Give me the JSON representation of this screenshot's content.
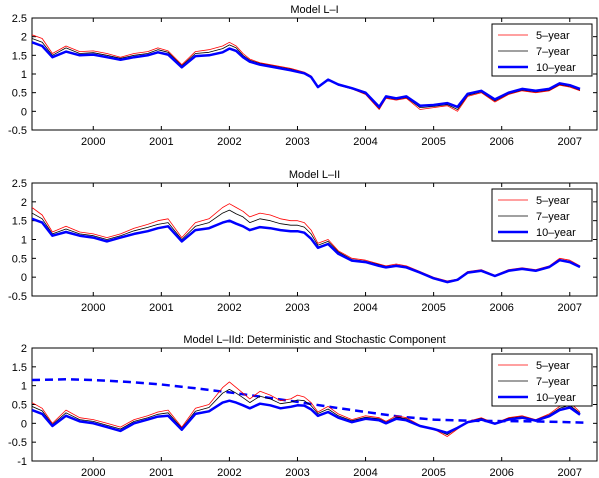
{
  "figure": {
    "x_ticks": [
      2000,
      2001,
      2002,
      2003,
      2004,
      2005,
      2006,
      2007
    ],
    "x_range": [
      1999.1,
      2007.4
    ]
  },
  "colors": {
    "five_year": "#ff0000",
    "seven_year": "#000000",
    "ten_year": "#0000ff",
    "deterministic": "#0000ff"
  },
  "chart_data": [
    {
      "type": "line",
      "title": "Model L–I",
      "xlabel": "",
      "ylabel": "",
      "xlim": [
        1999.1,
        2007.4
      ],
      "ylim": [
        -0.5,
        2.5
      ],
      "y_ticks": [
        -0.5,
        0,
        0.5,
        1,
        1.5,
        2,
        2.5
      ],
      "y_tick_labels": [
        "-0.5",
        "0",
        "0.5",
        "1",
        "1.5",
        "2",
        "2.5"
      ],
      "legend_position": "top-right",
      "x": [
        1999.1,
        1999.25,
        1999.4,
        1999.6,
        1999.8,
        2000.0,
        2000.2,
        2000.4,
        2000.6,
        2000.8,
        2000.95,
        2001.1,
        2001.3,
        2001.5,
        2001.7,
        2001.9,
        2002.0,
        2002.1,
        2002.2,
        2002.3,
        2002.45,
        2002.6,
        2002.75,
        2002.9,
        2003.0,
        2003.1,
        2003.2,
        2003.3,
        2003.45,
        2003.6,
        2003.8,
        2004.0,
        2004.2,
        2004.3,
        2004.45,
        2004.6,
        2004.8,
        2005.0,
        2005.2,
        2005.35,
        2005.5,
        2005.7,
        2005.9,
        2006.1,
        2006.3,
        2006.5,
        2006.7,
        2006.85,
        2007.0,
        2007.15
      ],
      "series": [
        {
          "name": "5–year",
          "values": [
            2.05,
            1.95,
            1.55,
            1.75,
            1.6,
            1.62,
            1.55,
            1.45,
            1.55,
            1.6,
            1.7,
            1.62,
            1.25,
            1.6,
            1.65,
            1.75,
            1.85,
            1.75,
            1.55,
            1.4,
            1.3,
            1.25,
            1.2,
            1.15,
            1.1,
            1.05,
            0.95,
            0.65,
            0.85,
            0.7,
            0.6,
            0.45,
            0.05,
            0.35,
            0.3,
            0.35,
            0.05,
            0.1,
            0.15,
            0.0,
            0.4,
            0.5,
            0.25,
            0.45,
            0.55,
            0.5,
            0.55,
            0.7,
            0.65,
            0.55
          ]
        },
        {
          "name": "7–year",
          "values": [
            1.95,
            1.85,
            1.5,
            1.7,
            1.55,
            1.57,
            1.5,
            1.42,
            1.5,
            1.55,
            1.65,
            1.58,
            1.22,
            1.55,
            1.58,
            1.68,
            1.78,
            1.7,
            1.5,
            1.37,
            1.28,
            1.23,
            1.18,
            1.13,
            1.08,
            1.03,
            0.93,
            0.65,
            0.85,
            0.7,
            0.6,
            0.47,
            0.08,
            0.37,
            0.32,
            0.37,
            0.1,
            0.13,
            0.18,
            0.05,
            0.43,
            0.52,
            0.28,
            0.47,
            0.57,
            0.52,
            0.57,
            0.72,
            0.67,
            0.57
          ]
        },
        {
          "name": "10–year",
          "values": [
            1.85,
            1.75,
            1.45,
            1.6,
            1.5,
            1.52,
            1.45,
            1.38,
            1.45,
            1.5,
            1.58,
            1.52,
            1.18,
            1.48,
            1.5,
            1.58,
            1.68,
            1.62,
            1.45,
            1.33,
            1.25,
            1.2,
            1.15,
            1.1,
            1.06,
            1.02,
            0.92,
            0.65,
            0.85,
            0.72,
            0.62,
            0.5,
            0.12,
            0.4,
            0.35,
            0.4,
            0.15,
            0.17,
            0.22,
            0.12,
            0.47,
            0.55,
            0.32,
            0.5,
            0.6,
            0.55,
            0.6,
            0.75,
            0.7,
            0.6
          ]
        }
      ]
    },
    {
      "type": "line",
      "title": "Model L–II",
      "xlabel": "",
      "ylabel": "",
      "xlim": [
        1999.1,
        2007.4
      ],
      "ylim": [
        -0.5,
        2.5
      ],
      "y_ticks": [
        -0.5,
        0,
        0.5,
        1,
        1.5,
        2,
        2.5
      ],
      "y_tick_labels": [
        "-0.5",
        "0",
        "0.5",
        "1",
        "1.5",
        "2",
        "2.5"
      ],
      "legend_position": "top-right",
      "x": [
        1999.1,
        1999.25,
        1999.4,
        1999.6,
        1999.8,
        2000.0,
        2000.2,
        2000.4,
        2000.6,
        2000.8,
        2000.95,
        2001.1,
        2001.3,
        2001.5,
        2001.7,
        2001.9,
        2002.0,
        2002.1,
        2002.2,
        2002.3,
        2002.45,
        2002.6,
        2002.75,
        2002.9,
        2003.0,
        2003.1,
        2003.2,
        2003.3,
        2003.45,
        2003.6,
        2003.8,
        2004.0,
        2004.2,
        2004.3,
        2004.45,
        2004.6,
        2004.8,
        2005.0,
        2005.2,
        2005.35,
        2005.5,
        2005.7,
        2005.9,
        2006.1,
        2006.3,
        2006.5,
        2006.7,
        2006.85,
        2007.0,
        2007.15
      ],
      "series": [
        {
          "name": "5–year",
          "values": [
            1.85,
            1.65,
            1.2,
            1.35,
            1.2,
            1.15,
            1.05,
            1.15,
            1.3,
            1.4,
            1.5,
            1.55,
            1.05,
            1.45,
            1.55,
            1.85,
            1.95,
            1.85,
            1.75,
            1.6,
            1.7,
            1.65,
            1.55,
            1.5,
            1.5,
            1.45,
            1.25,
            0.9,
            1.0,
            0.7,
            0.5,
            0.45,
            0.35,
            0.3,
            0.35,
            0.3,
            0.15,
            0.0,
            -0.1,
            -0.05,
            0.15,
            0.2,
            0.05,
            0.2,
            0.25,
            0.2,
            0.3,
            0.5,
            0.45,
            0.3
          ]
        },
        {
          "name": "7–year",
          "values": [
            1.7,
            1.55,
            1.15,
            1.28,
            1.15,
            1.1,
            1.0,
            1.1,
            1.23,
            1.32,
            1.4,
            1.45,
            1.0,
            1.35,
            1.45,
            1.7,
            1.78,
            1.68,
            1.6,
            1.45,
            1.55,
            1.5,
            1.42,
            1.38,
            1.38,
            1.33,
            1.15,
            0.85,
            0.95,
            0.67,
            0.47,
            0.42,
            0.33,
            0.28,
            0.32,
            0.28,
            0.13,
            -0.02,
            -0.12,
            -0.06,
            0.13,
            0.18,
            0.04,
            0.18,
            0.23,
            0.18,
            0.28,
            0.47,
            0.42,
            0.28
          ]
        },
        {
          "name": "10–year",
          "values": [
            1.55,
            1.45,
            1.1,
            1.2,
            1.1,
            1.05,
            0.95,
            1.05,
            1.15,
            1.22,
            1.3,
            1.35,
            0.95,
            1.25,
            1.3,
            1.45,
            1.5,
            1.42,
            1.35,
            1.25,
            1.33,
            1.3,
            1.25,
            1.22,
            1.22,
            1.18,
            1.02,
            0.78,
            0.88,
            0.62,
            0.44,
            0.4,
            0.3,
            0.26,
            0.3,
            0.26,
            0.12,
            -0.03,
            -0.13,
            -0.07,
            0.12,
            0.17,
            0.03,
            0.17,
            0.22,
            0.17,
            0.27,
            0.45,
            0.4,
            0.27
          ]
        }
      ]
    },
    {
      "type": "line",
      "title": "Model L–IId: Deterministic and Stochastic Component",
      "xlabel": "",
      "ylabel": "",
      "xlim": [
        1999.1,
        2007.4
      ],
      "ylim": [
        -1,
        2
      ],
      "y_ticks": [
        -1,
        -0.5,
        0,
        0.5,
        1,
        1.5,
        2
      ],
      "y_tick_labels": [
        "-1",
        "-0.5",
        "0",
        "0.5",
        "1",
        "1.5",
        "2"
      ],
      "legend_position": "top-right",
      "x": [
        1999.1,
        1999.25,
        1999.4,
        1999.6,
        1999.8,
        2000.0,
        2000.2,
        2000.4,
        2000.6,
        2000.8,
        2000.95,
        2001.1,
        2001.3,
        2001.5,
        2001.7,
        2001.9,
        2002.0,
        2002.1,
        2002.2,
        2002.3,
        2002.45,
        2002.6,
        2002.75,
        2002.9,
        2003.0,
        2003.1,
        2003.2,
        2003.3,
        2003.45,
        2003.6,
        2003.8,
        2004.0,
        2004.2,
        2004.3,
        2004.45,
        2004.6,
        2004.8,
        2005.0,
        2005.2,
        2005.35,
        2005.5,
        2005.7,
        2005.9,
        2006.1,
        2006.3,
        2006.5,
        2006.7,
        2006.85,
        2007.0,
        2007.15
      ],
      "series": [
        {
          "name": "5–year",
          "values": [
            0.55,
            0.4,
            0.0,
            0.35,
            0.15,
            0.1,
            0.0,
            -0.1,
            0.1,
            0.2,
            0.3,
            0.35,
            -0.1,
            0.4,
            0.5,
            0.95,
            1.1,
            0.95,
            0.8,
            0.65,
            0.85,
            0.75,
            0.6,
            0.65,
            0.75,
            0.7,
            0.55,
            0.3,
            0.45,
            0.25,
            0.1,
            0.2,
            0.15,
            0.05,
            0.2,
            0.15,
            -0.05,
            -0.15,
            -0.35,
            -0.15,
            0.05,
            0.15,
            0.0,
            0.15,
            0.2,
            0.1,
            0.25,
            0.45,
            0.55,
            0.3
          ]
        },
        {
          "name": "7–year",
          "values": [
            0.45,
            0.33,
            -0.03,
            0.28,
            0.1,
            0.05,
            -0.05,
            -0.15,
            0.05,
            0.15,
            0.24,
            0.28,
            -0.13,
            0.32,
            0.42,
            0.8,
            0.9,
            0.8,
            0.68,
            0.55,
            0.72,
            0.65,
            0.52,
            0.56,
            0.62,
            0.6,
            0.47,
            0.26,
            0.38,
            0.2,
            0.07,
            0.16,
            0.12,
            0.03,
            0.16,
            0.12,
            -0.06,
            -0.15,
            -0.3,
            -0.13,
            0.04,
            0.13,
            0.0,
            0.13,
            0.18,
            0.09,
            0.22,
            0.4,
            0.48,
            0.27
          ]
        },
        {
          "name": "10–year",
          "values": [
            0.35,
            0.25,
            -0.07,
            0.2,
            0.05,
            0.0,
            -0.1,
            -0.2,
            0.0,
            0.1,
            0.18,
            0.2,
            -0.17,
            0.25,
            0.32,
            0.55,
            0.6,
            0.55,
            0.48,
            0.4,
            0.52,
            0.48,
            0.4,
            0.44,
            0.48,
            0.47,
            0.37,
            0.2,
            0.3,
            0.15,
            0.03,
            0.12,
            0.08,
            0.0,
            0.12,
            0.08,
            -0.07,
            -0.15,
            -0.25,
            -0.12,
            0.03,
            0.1,
            -0.01,
            0.1,
            0.15,
            0.07,
            0.19,
            0.35,
            0.42,
            0.23
          ]
        }
      ],
      "dashed_series": {
        "x": [
          1999.1,
          1999.6,
          2000.0,
          2000.5,
          2001.0,
          2001.5,
          2002.0,
          2002.5,
          2003.0,
          2003.5,
          2004.0,
          2004.5,
          2005.0,
          2005.5,
          2006.0,
          2006.5,
          2007.0,
          2007.2
        ],
        "values": [
          1.15,
          1.17,
          1.15,
          1.1,
          1.03,
          0.93,
          0.82,
          0.7,
          0.57,
          0.43,
          0.3,
          0.18,
          0.1,
          0.07,
          0.06,
          0.05,
          0.03,
          0.02
        ]
      }
    }
  ]
}
